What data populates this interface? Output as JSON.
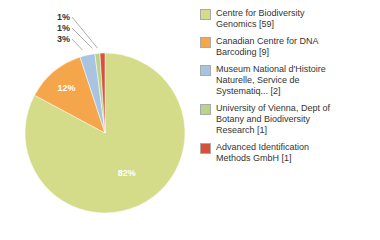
{
  "chart_data": {
    "type": "pie",
    "categories": [
      "Centre for Biodiversity\nGenomics [59]",
      "Canadian Centre for DNA\nBarcoding [9]",
      "Museum National d'Histoire\nNaturelle, Service de\nSystematiq... [2]",
      "University of Vienna, Dept of\nBotany and Biodiversity\nResearch [1]",
      "Advanced Identification\nMethods GmbH [1]"
    ],
    "values": [
      82,
      12,
      3,
      1,
      1
    ],
    "value_labels": [
      "82%",
      "12%",
      "3%",
      "1%",
      "1%"
    ],
    "colors": [
      "#d4dc8a",
      "#f5a54a",
      "#a8c4e0",
      "#b8d48a",
      "#d94f3a"
    ],
    "data_labels": true,
    "legend": "right"
  }
}
